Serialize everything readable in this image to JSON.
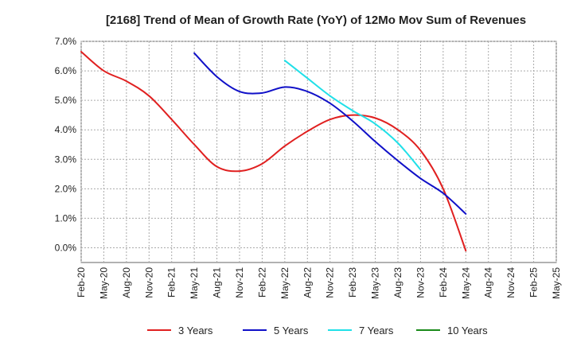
{
  "chart_data": {
    "type": "line",
    "title": "[2168]  Trend of Mean of Growth Rate (YoY) of 12Mo Mov Sum of Revenues",
    "xlabel": "",
    "ylabel": "",
    "ylim": [
      -0.5,
      7.0
    ],
    "y_ticks": [
      0.0,
      1.0,
      2.0,
      3.0,
      4.0,
      5.0,
      6.0,
      7.0
    ],
    "y_tick_labels": [
      "0.0%",
      "1.0%",
      "2.0%",
      "3.0%",
      "4.0%",
      "5.0%",
      "6.0%",
      "7.0%"
    ],
    "x_tick_labels": [
      "Feb-20",
      "May-20",
      "Aug-20",
      "Nov-20",
      "Feb-21",
      "May-21",
      "Aug-21",
      "Nov-21",
      "Feb-22",
      "May-22",
      "Aug-22",
      "Nov-22",
      "Feb-23",
      "May-23",
      "Aug-23",
      "Nov-23",
      "Feb-24",
      "May-24",
      "Aug-24",
      "Nov-24",
      "Feb-25",
      "May-25"
    ],
    "grid": true,
    "legend_position": "bottom",
    "series": [
      {
        "name": "3 Years",
        "color": "#e02020",
        "start_index": 0,
        "values": [
          6.65,
          6.0,
          5.65,
          5.15,
          4.35,
          3.5,
          2.75,
          2.6,
          2.85,
          3.45,
          3.95,
          4.35,
          4.5,
          4.4,
          4.0,
          3.3,
          2.0,
          -0.1
        ]
      },
      {
        "name": "5 Years",
        "color": "#1010c8",
        "start_index": 15,
        "values": [
          6.6,
          5.8,
          5.3,
          5.25,
          5.45,
          5.3,
          4.9,
          4.3,
          3.6,
          2.95,
          2.35,
          1.85,
          1.15
        ]
      },
      {
        "name": "7 Years",
        "color": "#20e0e8",
        "start_index": 27,
        "values": [
          6.35,
          5.75,
          5.15,
          4.65,
          4.2,
          3.55,
          2.65
        ]
      },
      {
        "name": "10 Years",
        "color": "#1a8a1a",
        "start_index": 0,
        "values": []
      }
    ]
  }
}
